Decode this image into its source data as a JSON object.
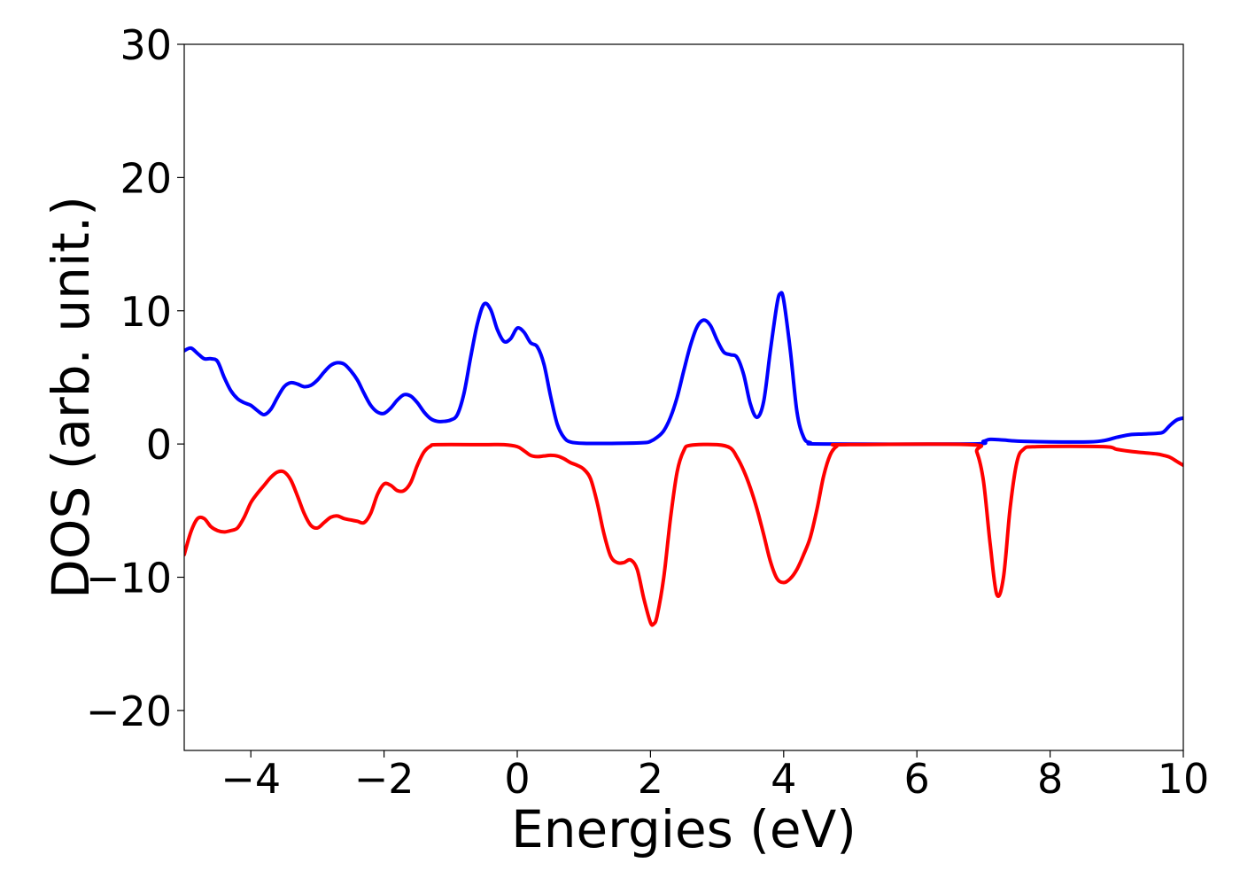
{
  "chart_data": {
    "type": "line",
    "xlabel": "Energies (eV)",
    "ylabel": "DOS (arb. unit.)",
    "xlim": [
      -5,
      10
    ],
    "ylim": [
      -23,
      30
    ],
    "grid": false,
    "x_ticks": [
      -4,
      -2,
      0,
      2,
      4,
      6,
      8,
      10
    ],
    "y_ticks": [
      -20,
      -10,
      0,
      10,
      20,
      30
    ],
    "x_tick_labels": [
      "−4",
      "−2",
      "0",
      "2",
      "4",
      "6",
      "8",
      "10"
    ],
    "y_tick_labels": [
      "−20",
      "−10",
      "0",
      "10",
      "20",
      "30"
    ],
    "series": [
      {
        "color": "#0000ff",
        "points": [
          [
            -5.0,
            7.0
          ],
          [
            -4.9,
            7.2
          ],
          [
            -4.8,
            6.8
          ],
          [
            -4.7,
            6.4
          ],
          [
            -4.6,
            6.4
          ],
          [
            -4.5,
            6.2
          ],
          [
            -4.4,
            5.0
          ],
          [
            -4.3,
            4.0
          ],
          [
            -4.2,
            3.4
          ],
          [
            -4.1,
            3.1
          ],
          [
            -4.0,
            2.9
          ],
          [
            -3.9,
            2.5
          ],
          [
            -3.8,
            2.2
          ],
          [
            -3.7,
            2.6
          ],
          [
            -3.6,
            3.5
          ],
          [
            -3.5,
            4.3
          ],
          [
            -3.4,
            4.6
          ],
          [
            -3.3,
            4.5
          ],
          [
            -3.2,
            4.3
          ],
          [
            -3.1,
            4.4
          ],
          [
            -3.0,
            4.8
          ],
          [
            -2.9,
            5.4
          ],
          [
            -2.8,
            5.9
          ],
          [
            -2.7,
            6.1
          ],
          [
            -2.6,
            6.0
          ],
          [
            -2.5,
            5.5
          ],
          [
            -2.4,
            4.8
          ],
          [
            -2.3,
            3.8
          ],
          [
            -2.2,
            2.9
          ],
          [
            -2.1,
            2.4
          ],
          [
            -2.0,
            2.3
          ],
          [
            -1.9,
            2.7
          ],
          [
            -1.8,
            3.3
          ],
          [
            -1.7,
            3.7
          ],
          [
            -1.6,
            3.6
          ],
          [
            -1.5,
            3.1
          ],
          [
            -1.4,
            2.4
          ],
          [
            -1.3,
            1.9
          ],
          [
            -1.2,
            1.7
          ],
          [
            -1.1,
            1.7
          ],
          [
            -1.0,
            1.8
          ],
          [
            -0.9,
            2.2
          ],
          [
            -0.8,
            3.8
          ],
          [
            -0.7,
            6.5
          ],
          [
            -0.6,
            9.0
          ],
          [
            -0.5,
            10.5
          ],
          [
            -0.4,
            10.1
          ],
          [
            -0.3,
            8.6
          ],
          [
            -0.2,
            7.7
          ],
          [
            -0.1,
            7.9
          ],
          [
            0.0,
            8.7
          ],
          [
            0.1,
            8.4
          ],
          [
            0.2,
            7.6
          ],
          [
            0.3,
            7.3
          ],
          [
            0.4,
            6.0
          ],
          [
            0.5,
            3.6
          ],
          [
            0.6,
            1.5
          ],
          [
            0.7,
            0.5
          ],
          [
            0.8,
            0.15
          ],
          [
            1.0,
            0.05
          ],
          [
            1.5,
            0.05
          ],
          [
            1.9,
            0.1
          ],
          [
            2.0,
            0.2
          ],
          [
            2.1,
            0.5
          ],
          [
            2.2,
            1.0
          ],
          [
            2.3,
            2.0
          ],
          [
            2.4,
            3.5
          ],
          [
            2.5,
            5.5
          ],
          [
            2.6,
            7.4
          ],
          [
            2.7,
            8.8
          ],
          [
            2.8,
            9.3
          ],
          [
            2.9,
            8.9
          ],
          [
            3.0,
            7.8
          ],
          [
            3.1,
            6.9
          ],
          [
            3.2,
            6.7
          ],
          [
            3.3,
            6.5
          ],
          [
            3.4,
            5.2
          ],
          [
            3.5,
            3.0
          ],
          [
            3.6,
            2.0
          ],
          [
            3.7,
            3.2
          ],
          [
            3.8,
            7.0
          ],
          [
            3.9,
            10.5
          ],
          [
            3.95,
            11.3
          ],
          [
            4.0,
            10.8
          ],
          [
            4.1,
            7.0
          ],
          [
            4.2,
            2.4
          ],
          [
            4.3,
            0.5
          ],
          [
            4.4,
            0.1
          ],
          [
            4.6,
            0.0
          ],
          [
            6.8,
            0.0
          ],
          [
            7.0,
            0.2
          ],
          [
            7.1,
            0.35
          ],
          [
            7.3,
            0.3
          ],
          [
            7.6,
            0.2
          ],
          [
            8.5,
            0.15
          ],
          [
            8.8,
            0.25
          ],
          [
            9.0,
            0.5
          ],
          [
            9.2,
            0.7
          ],
          [
            9.4,
            0.75
          ],
          [
            9.6,
            0.8
          ],
          [
            9.7,
            0.9
          ],
          [
            9.8,
            1.4
          ],
          [
            9.9,
            1.8
          ],
          [
            10.0,
            1.95
          ]
        ]
      },
      {
        "color": "#ff0000",
        "points": [
          [
            -5.0,
            -8.3
          ],
          [
            -4.9,
            -6.6
          ],
          [
            -4.8,
            -5.6
          ],
          [
            -4.7,
            -5.6
          ],
          [
            -4.6,
            -6.2
          ],
          [
            -4.5,
            -6.5
          ],
          [
            -4.4,
            -6.6
          ],
          [
            -4.3,
            -6.5
          ],
          [
            -4.2,
            -6.3
          ],
          [
            -4.1,
            -5.5
          ],
          [
            -4.0,
            -4.4
          ],
          [
            -3.9,
            -3.7
          ],
          [
            -3.8,
            -3.1
          ],
          [
            -3.7,
            -2.5
          ],
          [
            -3.6,
            -2.1
          ],
          [
            -3.5,
            -2.1
          ],
          [
            -3.4,
            -2.7
          ],
          [
            -3.3,
            -3.9
          ],
          [
            -3.2,
            -5.2
          ],
          [
            -3.1,
            -6.1
          ],
          [
            -3.0,
            -6.3
          ],
          [
            -2.9,
            -5.9
          ],
          [
            -2.8,
            -5.5
          ],
          [
            -2.7,
            -5.4
          ],
          [
            -2.6,
            -5.6
          ],
          [
            -2.5,
            -5.7
          ],
          [
            -2.4,
            -5.8
          ],
          [
            -2.3,
            -5.9
          ],
          [
            -2.2,
            -5.2
          ],
          [
            -2.1,
            -3.8
          ],
          [
            -2.0,
            -3.0
          ],
          [
            -1.9,
            -3.1
          ],
          [
            -1.8,
            -3.5
          ],
          [
            -1.7,
            -3.5
          ],
          [
            -1.6,
            -2.9
          ],
          [
            -1.5,
            -1.6
          ],
          [
            -1.4,
            -0.6
          ],
          [
            -1.3,
            -0.15
          ],
          [
            -1.2,
            -0.05
          ],
          [
            -0.5,
            -0.05
          ],
          [
            -0.2,
            -0.05
          ],
          [
            0.0,
            -0.2
          ],
          [
            0.1,
            -0.5
          ],
          [
            0.2,
            -0.85
          ],
          [
            0.3,
            -0.95
          ],
          [
            0.4,
            -0.9
          ],
          [
            0.5,
            -0.85
          ],
          [
            0.6,
            -0.9
          ],
          [
            0.7,
            -1.1
          ],
          [
            0.8,
            -1.4
          ],
          [
            0.9,
            -1.6
          ],
          [
            1.0,
            -1.9
          ],
          [
            1.1,
            -2.6
          ],
          [
            1.2,
            -4.4
          ],
          [
            1.3,
            -6.7
          ],
          [
            1.4,
            -8.4
          ],
          [
            1.5,
            -8.9
          ],
          [
            1.6,
            -8.9
          ],
          [
            1.7,
            -8.7
          ],
          [
            1.8,
            -9.4
          ],
          [
            1.9,
            -11.6
          ],
          [
            2.0,
            -13.4
          ],
          [
            2.05,
            -13.5
          ],
          [
            2.1,
            -12.9
          ],
          [
            2.2,
            -10.0
          ],
          [
            2.3,
            -5.6
          ],
          [
            2.4,
            -2.1
          ],
          [
            2.5,
            -0.5
          ],
          [
            2.6,
            -0.1
          ],
          [
            3.0,
            -0.05
          ],
          [
            3.2,
            -0.3
          ],
          [
            3.3,
            -1.0
          ],
          [
            3.4,
            -2.0
          ],
          [
            3.5,
            -3.3
          ],
          [
            3.6,
            -4.9
          ],
          [
            3.7,
            -6.8
          ],
          [
            3.8,
            -8.8
          ],
          [
            3.9,
            -10.1
          ],
          [
            4.0,
            -10.4
          ],
          [
            4.1,
            -10.1
          ],
          [
            4.2,
            -9.4
          ],
          [
            4.3,
            -8.3
          ],
          [
            4.4,
            -7.0
          ],
          [
            4.5,
            -4.9
          ],
          [
            4.6,
            -2.4
          ],
          [
            4.7,
            -0.8
          ],
          [
            4.8,
            -0.15
          ],
          [
            4.9,
            -0.05
          ],
          [
            6.8,
            -0.05
          ],
          [
            6.9,
            -0.6
          ],
          [
            7.0,
            -2.8
          ],
          [
            7.1,
            -7.5
          ],
          [
            7.2,
            -11.3
          ],
          [
            7.3,
            -10.0
          ],
          [
            7.4,
            -4.8
          ],
          [
            7.5,
            -1.4
          ],
          [
            7.6,
            -0.4
          ],
          [
            7.8,
            -0.2
          ],
          [
            8.8,
            -0.2
          ],
          [
            9.0,
            -0.4
          ],
          [
            9.2,
            -0.55
          ],
          [
            9.4,
            -0.65
          ],
          [
            9.6,
            -0.75
          ],
          [
            9.7,
            -0.85
          ],
          [
            9.8,
            -1.0
          ],
          [
            9.9,
            -1.3
          ],
          [
            10.0,
            -1.6
          ]
        ]
      }
    ]
  }
}
